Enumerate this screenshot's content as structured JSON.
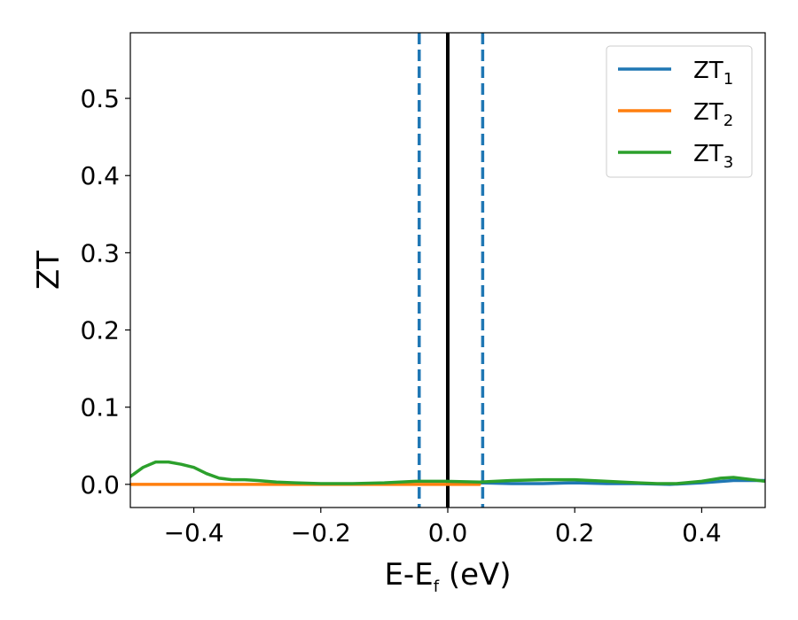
{
  "chart_data": {
    "type": "line",
    "xlabel_main": "E-E",
    "xlabel_sub": "f",
    "xlabel_tail": " (eV)",
    "ylabel": "ZT",
    "xlim": [
      -0.5,
      0.5
    ],
    "ylim": [
      -0.03,
      0.585
    ],
    "xticks": [
      -0.4,
      -0.2,
      0.0,
      0.2,
      0.4
    ],
    "xtick_labels": [
      "−0.4",
      "−0.2",
      "0.0",
      "0.2",
      "0.4"
    ],
    "yticks": [
      0.0,
      0.1,
      0.2,
      0.3,
      0.4,
      0.5
    ],
    "ytick_labels": [
      "0.0",
      "0.1",
      "0.2",
      "0.3",
      "0.4",
      "0.5"
    ],
    "grid": false,
    "legend_position": "top-right",
    "vlines": [
      {
        "x": 0.0,
        "style": "solid",
        "color": "#000000"
      },
      {
        "x": -0.045,
        "style": "dashed",
        "color": "#1f77b4"
      },
      {
        "x": 0.055,
        "style": "dashed",
        "color": "#1f77b4"
      }
    ],
    "series": [
      {
        "name_main": "ZT",
        "name_sub": "1",
        "color": "#1f77b4",
        "x": [
          0.0,
          0.05,
          0.1,
          0.15,
          0.2,
          0.25,
          0.3,
          0.35,
          0.4,
          0.45,
          0.5
        ],
        "y": [
          0.0,
          0.002,
          0.001,
          0.001,
          0.002,
          0.001,
          0.001,
          0.0,
          0.002,
          0.005,
          0.005
        ]
      },
      {
        "name_main": "ZT",
        "name_sub": "2",
        "color": "#ff7f0e",
        "x": [
          -0.5,
          -0.4,
          -0.3,
          -0.2,
          -0.1,
          0.0,
          0.05
        ],
        "y": [
          0.0,
          0.0,
          0.0,
          0.0,
          0.0,
          0.0,
          0.0
        ]
      },
      {
        "name_main": "ZT",
        "name_sub": "3",
        "color": "#2ca02c",
        "x": [
          -0.5,
          -0.48,
          -0.46,
          -0.44,
          -0.42,
          -0.4,
          -0.38,
          -0.36,
          -0.34,
          -0.32,
          -0.3,
          -0.27,
          -0.24,
          -0.2,
          -0.15,
          -0.1,
          -0.05,
          0.0,
          0.05,
          0.1,
          0.15,
          0.2,
          0.25,
          0.3,
          0.33,
          0.36,
          0.4,
          0.43,
          0.45,
          0.48,
          0.5
        ],
        "y": [
          0.01,
          0.022,
          0.029,
          0.029,
          0.026,
          0.022,
          0.014,
          0.008,
          0.006,
          0.006,
          0.005,
          0.003,
          0.002,
          0.001,
          0.001,
          0.002,
          0.004,
          0.004,
          0.003,
          0.005,
          0.006,
          0.006,
          0.004,
          0.002,
          0.001,
          0.001,
          0.004,
          0.008,
          0.009,
          0.006,
          0.004
        ]
      }
    ]
  }
}
